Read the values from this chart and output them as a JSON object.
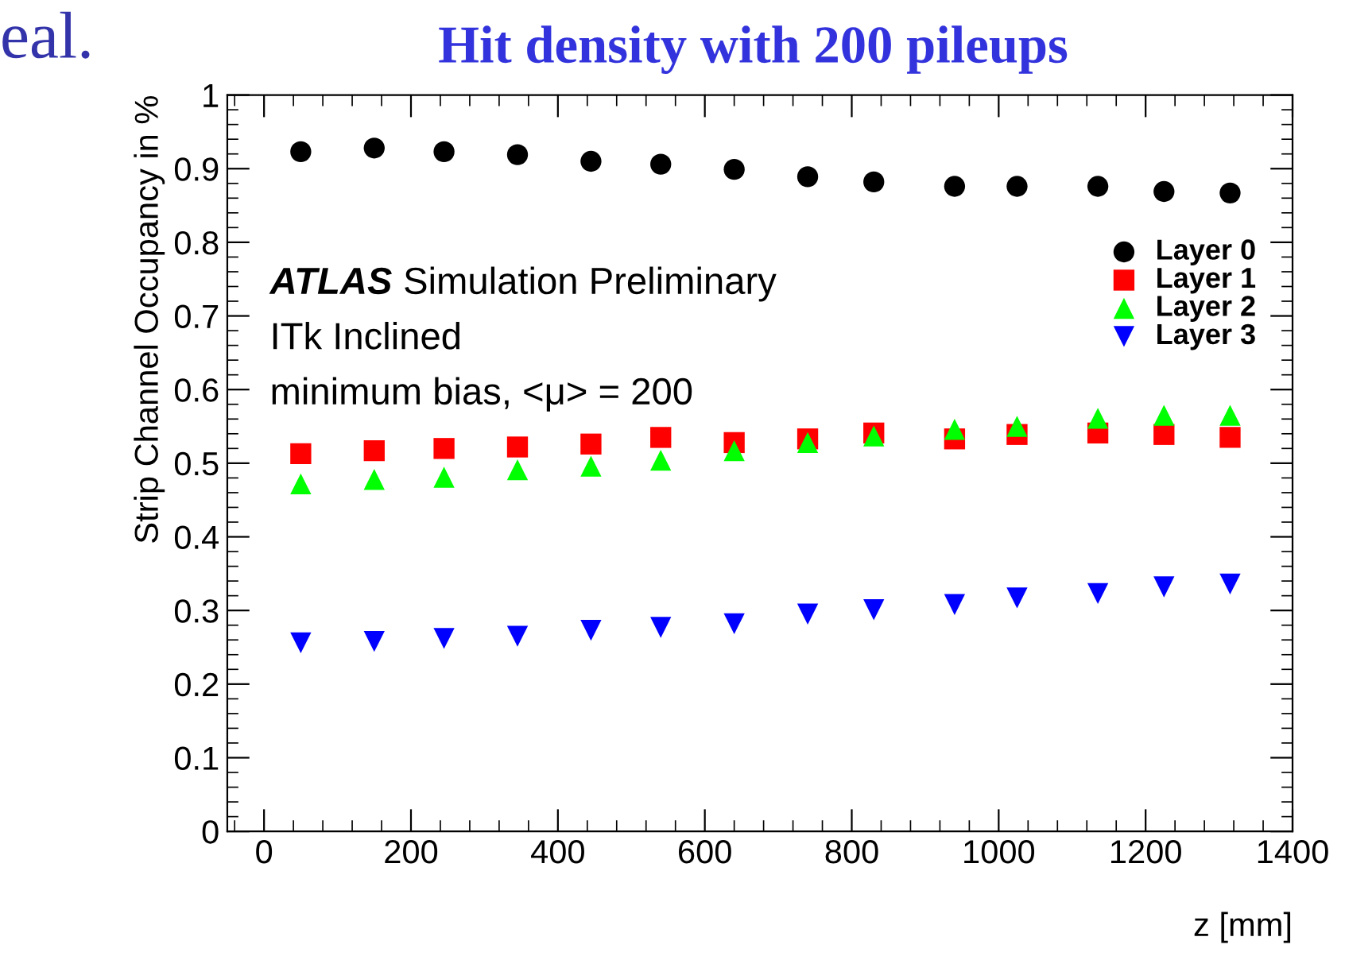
{
  "chart_data": {
    "type": "scatter",
    "title": "Hit density with 200 pileups",
    "xlabel": "z [mm]",
    "ylabel": "Strip Channel Occupancy in %",
    "annotations": [
      "eal.",
      "ATLAS",
      "Simulation Preliminary",
      "ITk Inclined",
      "minimum bias, <μ> = 200"
    ],
    "x": [
      50,
      150,
      245,
      345,
      445,
      540,
      640,
      740,
      830,
      940,
      1025,
      1135,
      1225,
      1315
    ],
    "series": [
      {
        "name": "Layer 0",
        "color": "#000000",
        "marker": "circle",
        "values": [
          0.923,
          0.928,
          0.923,
          0.919,
          0.91,
          0.906,
          0.899,
          0.889,
          0.882,
          0.876,
          0.876,
          0.876,
          0.869,
          0.867
        ]
      },
      {
        "name": "Layer 1",
        "color": "#ff0000",
        "marker": "square",
        "values": [
          0.513,
          0.517,
          0.52,
          0.522,
          0.526,
          0.535,
          0.528,
          0.533,
          0.541,
          0.533,
          0.539,
          0.541,
          0.539,
          0.535
        ]
      },
      {
        "name": "Layer 2",
        "color": "#00ff00",
        "marker": "triangle",
        "values": [
          0.472,
          0.478,
          0.481,
          0.491,
          0.496,
          0.504,
          0.517,
          0.528,
          0.537,
          0.546,
          0.55,
          0.561,
          0.565,
          0.565
        ]
      },
      {
        "name": "Layer 3",
        "color": "#0000ff",
        "marker": "triangle_down",
        "values": [
          0.256,
          0.258,
          0.262,
          0.265,
          0.273,
          0.277,
          0.282,
          0.295,
          0.301,
          0.308,
          0.317,
          0.323,
          0.332,
          0.336
        ]
      }
    ],
    "xlim": [
      -50,
      1400
    ],
    "xticks": [
      0,
      200,
      400,
      600,
      800,
      1000,
      1200,
      1400
    ],
    "ylim": [
      0,
      1
    ],
    "yticks": [
      0,
      0.1,
      0.2,
      0.3,
      0.4,
      0.5,
      0.6,
      0.7,
      0.8,
      0.9,
      1
    ],
    "grid": false,
    "legend": "top right"
  }
}
